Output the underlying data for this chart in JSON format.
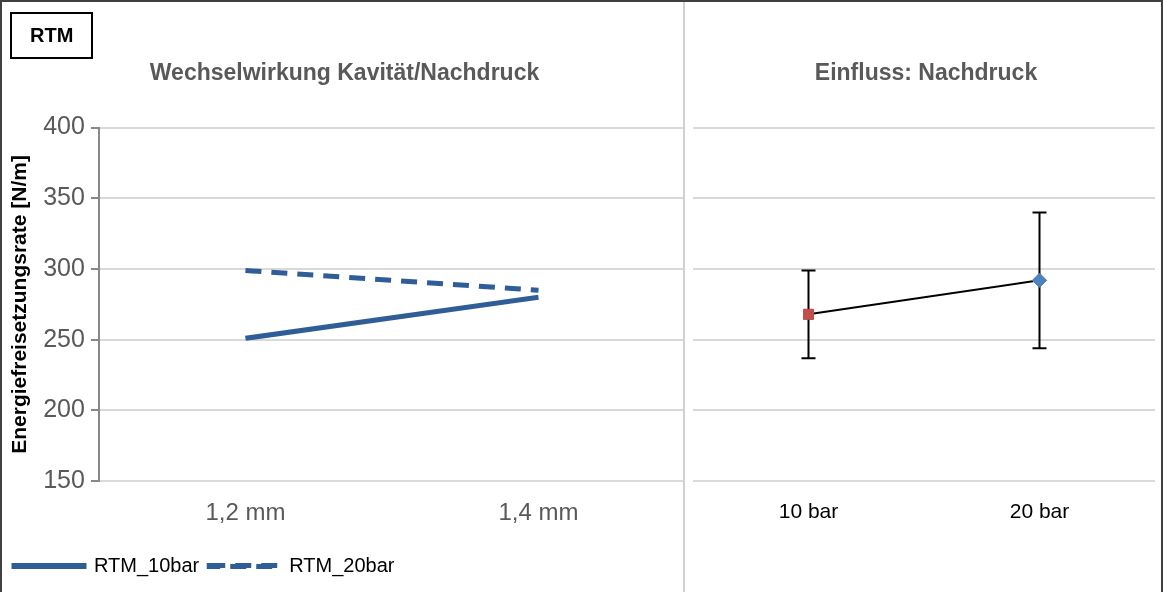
{
  "chart_data": [
    {
      "type": "line",
      "title": "Wechselwirkung Kavität/Nachdruck",
      "ylabel": "Energiefreisetzungsrate [N/m]",
      "annotations": [
        "RTM"
      ],
      "categories": [
        "1,2 mm",
        "1,4 mm"
      ],
      "ylim": [
        150,
        400
      ],
      "yticks": [
        150,
        200,
        250,
        300,
        350,
        400
      ],
      "grid": "y",
      "legend": "bottom left",
      "marker": "none",
      "series": [
        {
          "name": "RTM_10bar",
          "color": "#2e5e95",
          "values": [
            251,
            280
          ],
          "line_style": "solid"
        },
        {
          "name": "RTM_20bar",
          "color": "#2e5e95",
          "values": [
            299,
            285
          ],
          "line_style": "dashed"
        }
      ]
    },
    {
      "type": "line",
      "title": "Einfluss: Nachdruck",
      "categories": [
        "10 bar",
        "20 bar"
      ],
      "ylim": [
        150,
        400
      ],
      "yticks": [
        150,
        200,
        250,
        300,
        350,
        400
      ],
      "tick_labels": "x",
      "grid": "y",
      "legend": false,
      "series": [
        {
          "color": "#000000",
          "colors": [
            "#c0504d",
            "#4f81bd"
          ],
          "marker": [
            "square",
            "diamond"
          ],
          "values": [
            268,
            292
          ],
          "errors": [
            31,
            48
          ]
        }
      ]
    }
  ]
}
